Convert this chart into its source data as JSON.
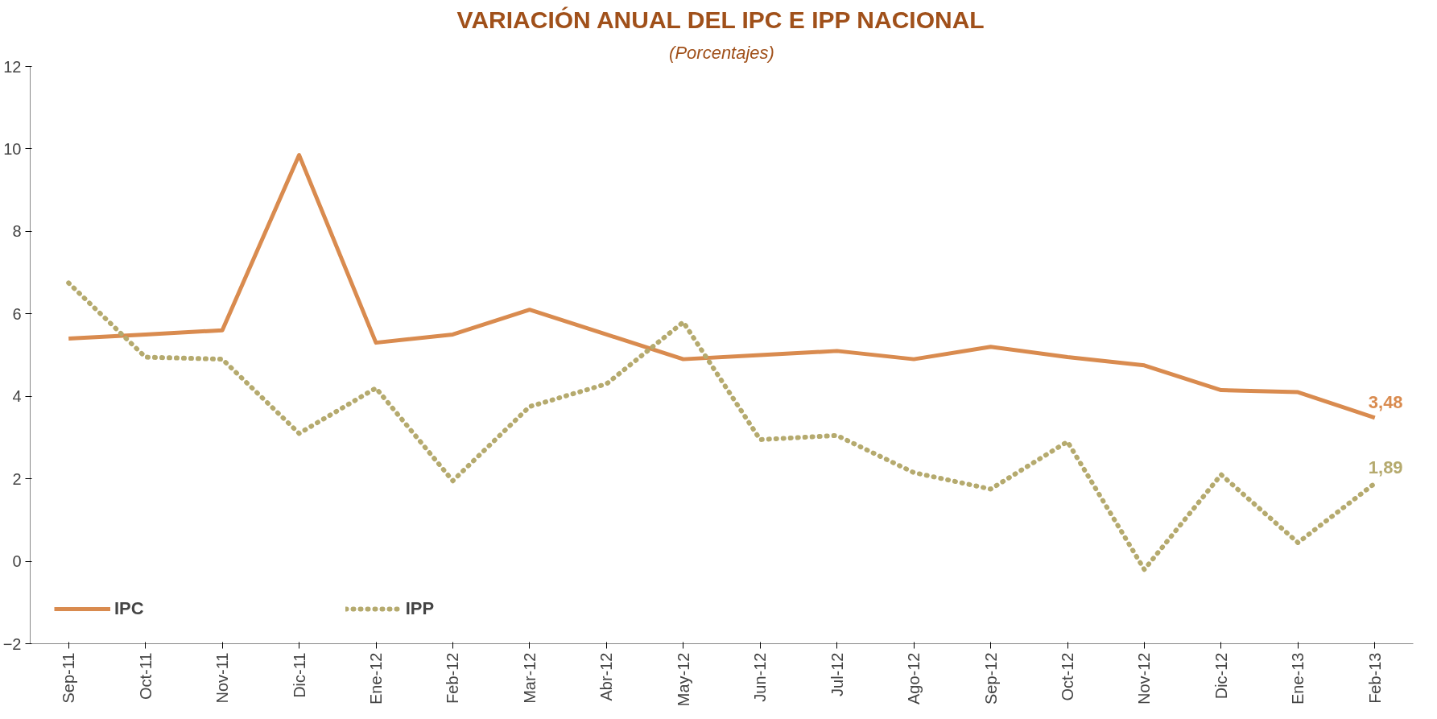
{
  "chart_data": {
    "type": "line",
    "title": "VARIACIÓN ANUAL DEL IPC E IPP NACIONAL",
    "subtitle": "(Porcentajes)",
    "categories": [
      "Sep-11",
      "Oct-11",
      "Nov-11",
      "Dic-11",
      "Ene-12",
      "Feb-12",
      "Mar-12",
      "Abr-12",
      "May-12",
      "Jun-12",
      "Jul-12",
      "Ago-12",
      "Sep-12",
      "Oct-12",
      "Nov-12",
      "Dic-12",
      "Ene-13",
      "Feb-13"
    ],
    "series": [
      {
        "name": "IPC",
        "color": "#d98b4f",
        "line_style": "solid",
        "values": [
          5.4,
          5.5,
          5.6,
          9.85,
          5.3,
          5.5,
          6.1,
          5.5,
          4.9,
          5.0,
          5.1,
          4.9,
          5.2,
          4.95,
          4.75,
          4.15,
          4.1,
          3.48
        ],
        "value_labels": [
          null,
          null,
          null,
          null,
          null,
          null,
          null,
          null,
          null,
          null,
          null,
          null,
          null,
          null,
          null,
          null,
          null,
          "3,48"
        ]
      },
      {
        "name": "IPP",
        "color": "#b5aa6e",
        "line_style": "dotted",
        "values": [
          6.75,
          4.95,
          4.9,
          3.1,
          4.2,
          1.95,
          3.75,
          4.3,
          5.8,
          2.95,
          3.05,
          2.15,
          1.75,
          2.9,
          -0.2,
          2.1,
          0.45,
          1.89
        ],
        "value_labels": [
          null,
          null,
          null,
          null,
          null,
          null,
          null,
          null,
          null,
          null,
          null,
          null,
          null,
          null,
          null,
          null,
          null,
          "1,89"
        ]
      }
    ],
    "ylim": [
      -2,
      12
    ],
    "yticks": [
      -2,
      0,
      2,
      4,
      6,
      8,
      10,
      12
    ],
    "grid": false,
    "legend": "bottom left",
    "marker": "none"
  }
}
